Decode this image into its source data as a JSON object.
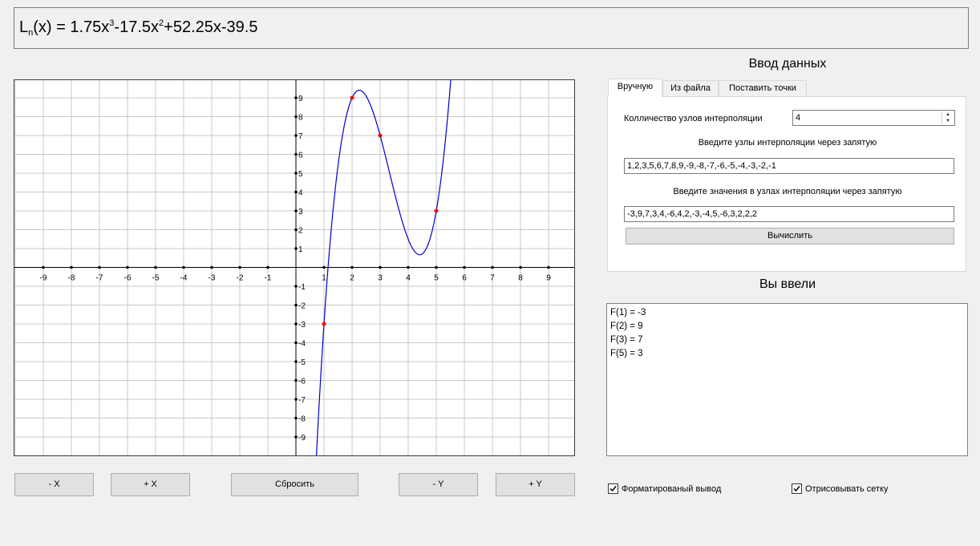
{
  "formula": {
    "L": "L",
    "sub": "n",
    "head": "(x) = 1.75x",
    "exp3": "3",
    "mid": "-17.5x",
    "exp2": "2",
    "tail": "+52.25x-39.5"
  },
  "buttons": {
    "minus_x": "- X",
    "plus_x": "+ X",
    "reset": "Сбросить",
    "minus_y": "- Y",
    "plus_y": "+ Y"
  },
  "input_section": {
    "title": "Ввод данных",
    "tabs": [
      {
        "label": "Вручную",
        "active": true
      },
      {
        "label": "Из файла",
        "active": false
      },
      {
        "label": "Поставить точки",
        "active": false
      }
    ],
    "nodes_count_label": "Колличество узлов интерполяции",
    "nodes_count_value": "4",
    "nodes_prompt": "Введите узлы интерполяции через запятую",
    "nodes_value": "1,2,3,5,6,7,8,9,-9,-8,-7,-6,-5,-4,-3,-2,-1",
    "values_prompt": "Введите значения в узлах интерполяции через запятую",
    "values_value": "-3,9,7,3,4,-6,4,2,-3,-4,5,-6,3,2,2,2",
    "compute_label": "Вычислить"
  },
  "entered_section": {
    "title": "Вы ввели",
    "lines": [
      "F(1) = -3",
      "F(2) = 9",
      "F(3) = 7",
      "F(5) = 3"
    ]
  },
  "options": {
    "formatted_output": {
      "label": "Форматированый вывод",
      "checked": true
    },
    "draw_grid": {
      "label": "Отрисовывать сетку",
      "checked": true
    }
  },
  "chart_data": {
    "type": "line",
    "title": "",
    "xlabel": "",
    "ylabel": "",
    "xlim": [
      -10,
      10
    ],
    "ylim": [
      -10,
      10
    ],
    "x_ticks": [
      -9,
      -8,
      -7,
      -6,
      -5,
      -4,
      -3,
      -2,
      -1,
      1,
      2,
      3,
      4,
      5,
      6,
      7,
      8,
      9
    ],
    "y_ticks": [
      -9,
      -8,
      -7,
      -6,
      -5,
      -4,
      -3,
      -2,
      -1,
      1,
      2,
      3,
      4,
      5,
      6,
      7,
      8,
      9
    ],
    "grid": true,
    "polynomial_coefficients": [
      1.75,
      -17.5,
      52.25,
      -39.5
    ],
    "curve_color": "#0000cc",
    "points_color": "#ff0000",
    "points": [
      {
        "x": 1,
        "y": -3
      },
      {
        "x": 2,
        "y": 9
      },
      {
        "x": 3,
        "y": 7
      },
      {
        "x": 5,
        "y": 3
      }
    ]
  }
}
